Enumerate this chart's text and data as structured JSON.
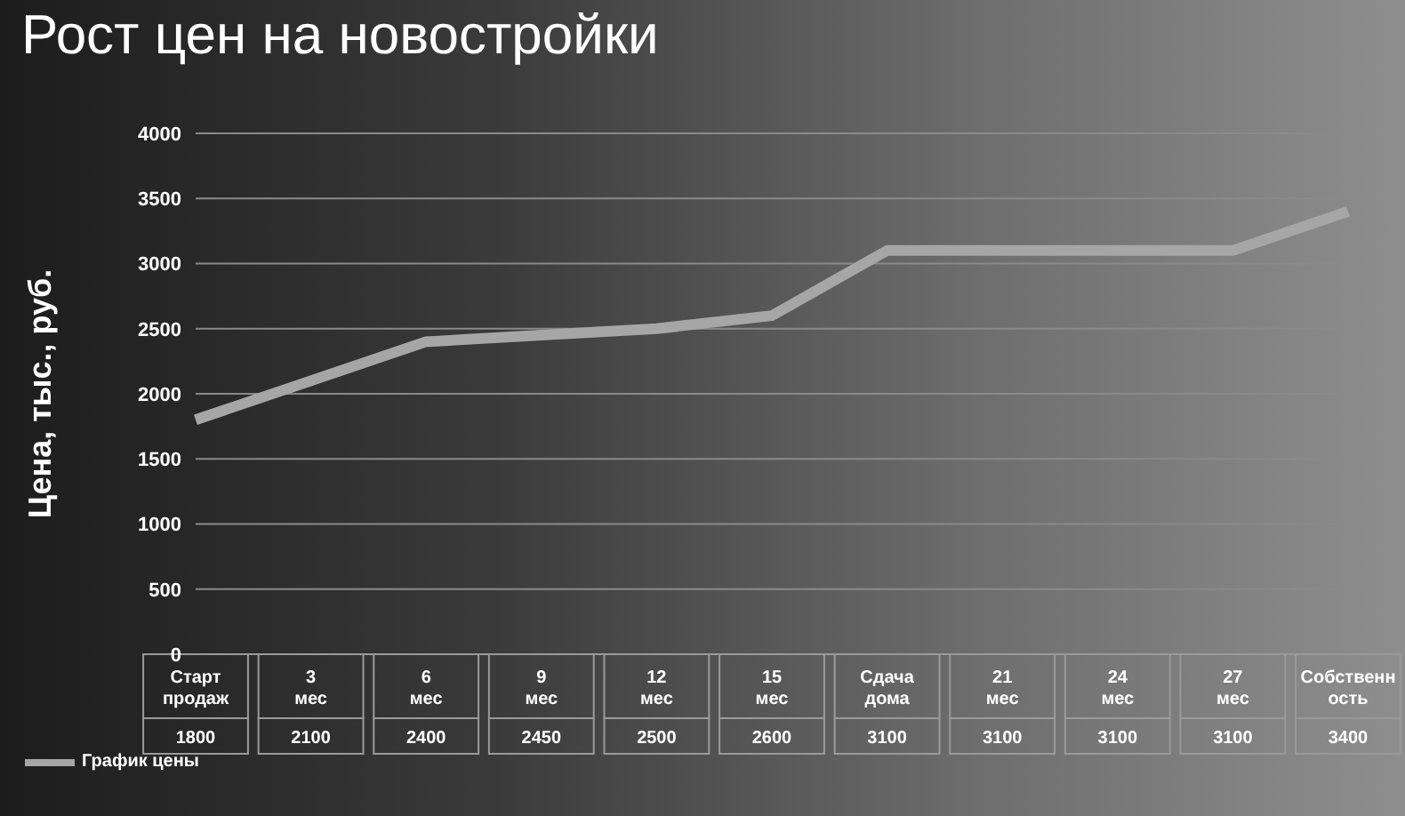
{
  "chart_data": {
    "type": "line",
    "title": "Рост цен на новостройки",
    "ylabel": "Цена, тыс., руб.",
    "categories": [
      "Старт продаж",
      "3 мес",
      "6 мес",
      "9 мес",
      "12 мес",
      "15 мес",
      "Сдача дома",
      "21 мес",
      "24 мес",
      "27 мес",
      "Собственность"
    ],
    "series": [
      {
        "name": "График цены",
        "color": "#a6a6a6",
        "values": [
          1800,
          2100,
          2400,
          2450,
          2500,
          2600,
          3100,
          3100,
          3100,
          3100,
          3400
        ]
      }
    ],
    "ylim": [
      0,
      4000
    ],
    "yticks": [
      0,
      500,
      1000,
      1500,
      2000,
      2500,
      3000,
      3500,
      4000
    ],
    "grid": "y",
    "legend": "bottom",
    "data_labels": true,
    "marker": "none",
    "line_style": "solid"
  }
}
